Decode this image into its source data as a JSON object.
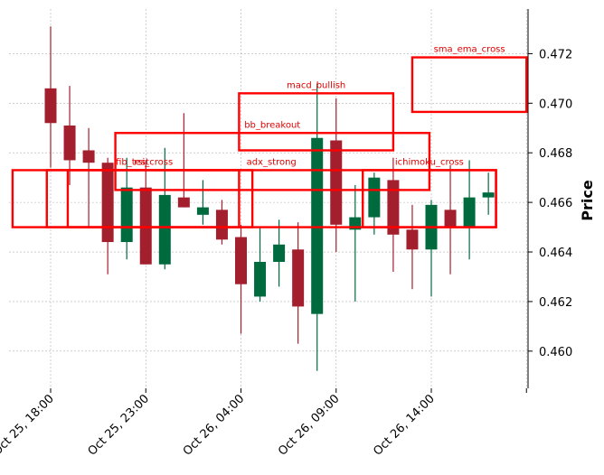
{
  "chart_data": {
    "type": "candlestick",
    "title": "",
    "xlabel": "",
    "ylabel": "Price",
    "ylim": [
      0.4585,
      0.4738
    ],
    "y_ticks": [
      "0.460",
      "0.462",
      "0.464",
      "0.466",
      "0.468",
      "0.470",
      "0.472"
    ],
    "x_ticks": [
      {
        "i": 0,
        "label": "Oct 25, 18:00"
      },
      {
        "i": 5,
        "label": "Oct 25, 23:00"
      },
      {
        "i": 10,
        "label": "Oct 26, 04:00"
      },
      {
        "i": 15,
        "label": "Oct 26, 09:00"
      },
      {
        "i": 20,
        "label": "Oct 26, 14:00"
      },
      {
        "i": 25,
        "label": ""
      }
    ],
    "grid": true,
    "colors": {
      "up": "#006a3f",
      "down": "#a31f2d",
      "annotation": "#ff0000"
    },
    "candles": [
      {
        "time": "Oct 25, 18:00",
        "open": 0.4706,
        "high": 0.4731,
        "low": 0.4674,
        "close": 0.4692
      },
      {
        "time": "Oct 25, 19:00",
        "open": 0.4691,
        "high": 0.4707,
        "low": 0.4667,
        "close": 0.4677
      },
      {
        "time": "Oct 25, 20:00",
        "open": 0.4681,
        "high": 0.469,
        "low": 0.465,
        "close": 0.4676
      },
      {
        "time": "Oct 25, 21:00",
        "open": 0.4676,
        "high": 0.4678,
        "low": 0.4631,
        "close": 0.4644
      },
      {
        "time": "Oct 25, 22:00",
        "open": 0.4644,
        "high": 0.4678,
        "low": 0.4637,
        "close": 0.4666
      },
      {
        "time": "Oct 25, 23:00",
        "open": 0.4666,
        "high": 0.4677,
        "low": 0.4635,
        "close": 0.4635
      },
      {
        "time": "Oct 26, 00:00",
        "open": 0.4635,
        "high": 0.4682,
        "low": 0.4633,
        "close": 0.4663
      },
      {
        "time": "Oct 26, 01:00",
        "open": 0.4662,
        "high": 0.4696,
        "low": 0.4658,
        "close": 0.4658
      },
      {
        "time": "Oct 26, 02:00",
        "open": 0.4655,
        "high": 0.4669,
        "low": 0.4651,
        "close": 0.4658
      },
      {
        "time": "Oct 26, 03:00",
        "open": 0.4657,
        "high": 0.4661,
        "low": 0.4643,
        "close": 0.4645
      },
      {
        "time": "Oct 26, 04:00",
        "open": 0.4646,
        "high": 0.4651,
        "low": 0.4607,
        "close": 0.4627
      },
      {
        "time": "Oct 26, 05:00",
        "open": 0.4622,
        "high": 0.465,
        "low": 0.462,
        "close": 0.4636
      },
      {
        "time": "Oct 26, 06:00",
        "open": 0.4636,
        "high": 0.4653,
        "low": 0.4626,
        "close": 0.4643
      },
      {
        "time": "Oct 26, 07:00",
        "open": 0.4641,
        "high": 0.4652,
        "low": 0.4603,
        "close": 0.4618
      },
      {
        "time": "Oct 26, 08:00",
        "open": 0.4615,
        "high": 0.4708,
        "low": 0.4592,
        "close": 0.4686
      },
      {
        "time": "Oct 26, 09:00",
        "open": 0.4685,
        "high": 0.4702,
        "low": 0.464,
        "close": 0.4651
      },
      {
        "time": "Oct 26, 10:00",
        "open": 0.4649,
        "high": 0.4667,
        "low": 0.462,
        "close": 0.4654
      },
      {
        "time": "Oct 26, 11:00",
        "open": 0.4654,
        "high": 0.4672,
        "low": 0.4647,
        "close": 0.467
      },
      {
        "time": "Oct 26, 12:00",
        "open": 0.4669,
        "high": 0.4678,
        "low": 0.4632,
        "close": 0.4647
      },
      {
        "time": "Oct 26, 13:00",
        "open": 0.4649,
        "high": 0.4659,
        "low": 0.4625,
        "close": 0.4641
      },
      {
        "time": "Oct 26, 14:00",
        "open": 0.4641,
        "high": 0.4661,
        "low": 0.4622,
        "close": 0.4659
      },
      {
        "time": "Oct 26, 15:00",
        "open": 0.4657,
        "high": 0.4675,
        "low": 0.4631,
        "close": 0.465
      },
      {
        "time": "Oct 26, 16:00",
        "open": 0.465,
        "high": 0.4677,
        "low": 0.4637,
        "close": 0.4662
      },
      {
        "time": "Oct 26, 17:00",
        "open": 0.4662,
        "high": 0.4672,
        "low": 0.4655,
        "close": 0.4664
      }
    ],
    "annotations": [
      {
        "label": "sma_ema_cross",
        "x0": 19.0,
        "x1": 25.0,
        "y0": 0.46965,
        "y1": 0.47185
      },
      {
        "label": "macd_bullish",
        "x0": 9.9,
        "x1": 18.0,
        "y0": 0.4681,
        "y1": 0.4704
      },
      {
        "label": "bb_breakout",
        "x0": 3.4,
        "x1": 19.9,
        "y0": 0.4665,
        "y1": 0.4688
      },
      {
        "label": "fib_test",
        "x0": -2.0,
        "x1": 10.6,
        "y0": 0.465,
        "y1": 0.4673
      },
      {
        "label": "adx_strong",
        "x0": -0.2,
        "x1": 23.4,
        "y0": 0.465,
        "y1": 0.4673
      },
      {
        "label": "ichimoku_cross",
        "x0": 16.4,
        "x1": 23.4,
        "y0": 0.465,
        "y1": 0.4673
      },
      {
        "label": "rsi_cross",
        "x0": 0.9,
        "x1": 9.9,
        "y0": 0.465,
        "y1": 0.4673
      }
    ]
  }
}
